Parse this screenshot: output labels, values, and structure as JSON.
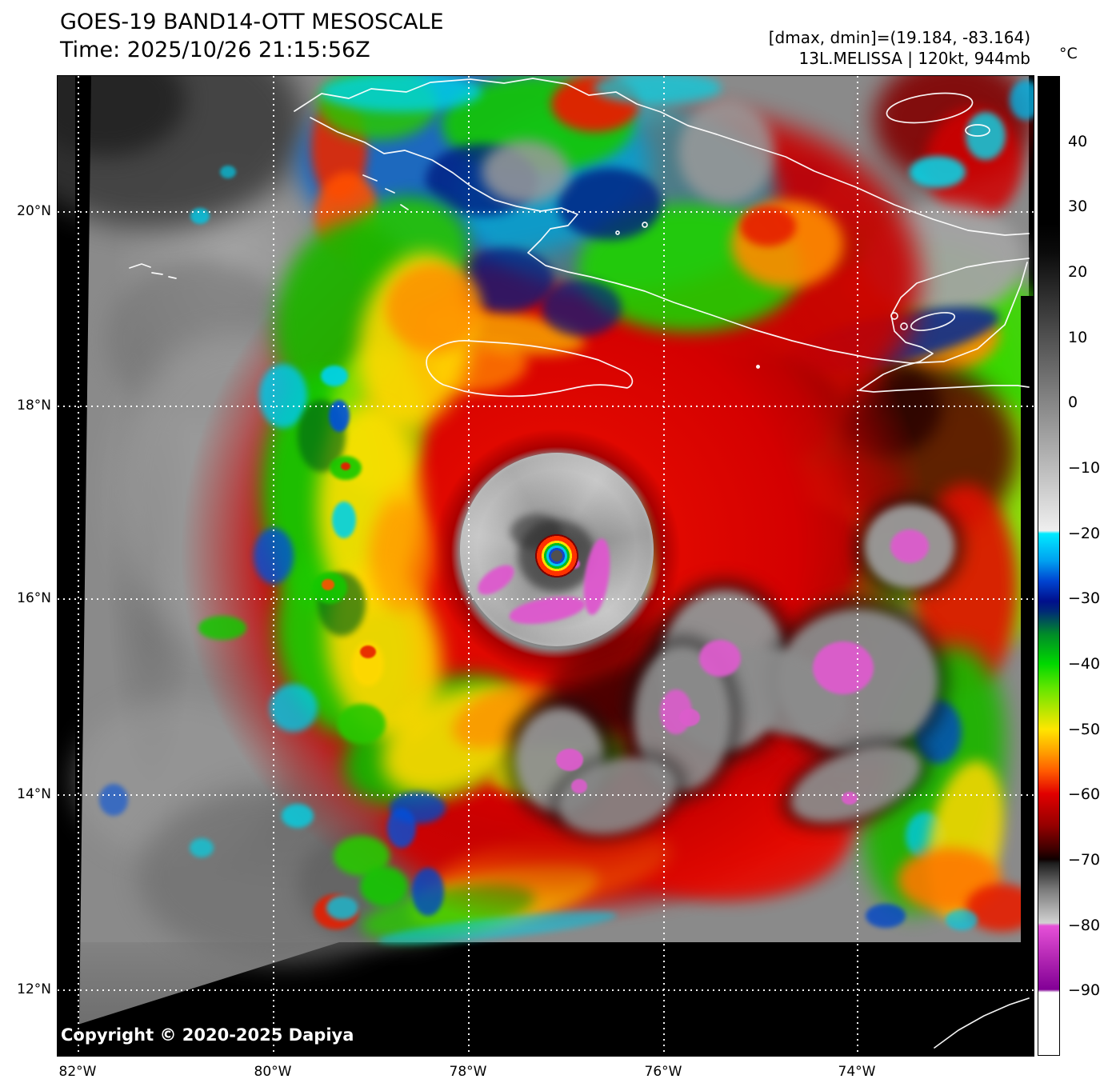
{
  "header": {
    "title": "GOES-19 BAND14-OTT MESOSCALE",
    "time": "Time: 2025/10/26 21:15:56Z",
    "dmax_dmin": "[dmax, dmin]=(19.184, -83.164)",
    "storm": "13L.MELISSA | 120kt, 944mb"
  },
  "colorbar": {
    "unit": "°C",
    "range_top_c": 50,
    "range_bottom_c": -100,
    "ticks": [
      {
        "value": 40,
        "label": "40"
      },
      {
        "value": 30,
        "label": "30"
      },
      {
        "value": 20,
        "label": "20"
      },
      {
        "value": 10,
        "label": "10"
      },
      {
        "value": 0,
        "label": "0"
      },
      {
        "value": -10,
        "label": "−10"
      },
      {
        "value": -20,
        "label": "−20"
      },
      {
        "value": -30,
        "label": "−30"
      },
      {
        "value": -40,
        "label": "−40"
      },
      {
        "value": -50,
        "label": "−50"
      },
      {
        "value": -60,
        "label": "−60"
      },
      {
        "value": -70,
        "label": "−70"
      },
      {
        "value": -80,
        "label": "−80"
      },
      {
        "value": -90,
        "label": "−90"
      }
    ]
  },
  "axes": {
    "lat": [
      "20°N",
      "18°N",
      "16°N",
      "14°N",
      "12°N"
    ],
    "lon": [
      "82°W",
      "80°W",
      "78°W",
      "76°W",
      "74°W"
    ]
  },
  "overlay": {
    "copyright": "Copyright © 2020-2025 Dapiya"
  },
  "palette": {
    "warm_gray": "#8a8a8a",
    "cold_red": "#d20000",
    "cold_green": "#14c800",
    "cold_yellow": "#ffe000",
    "cold_cyan": "#00d2e6",
    "cold_navy": "#001e96",
    "coldest_magenta": "#dc5ccc"
  }
}
